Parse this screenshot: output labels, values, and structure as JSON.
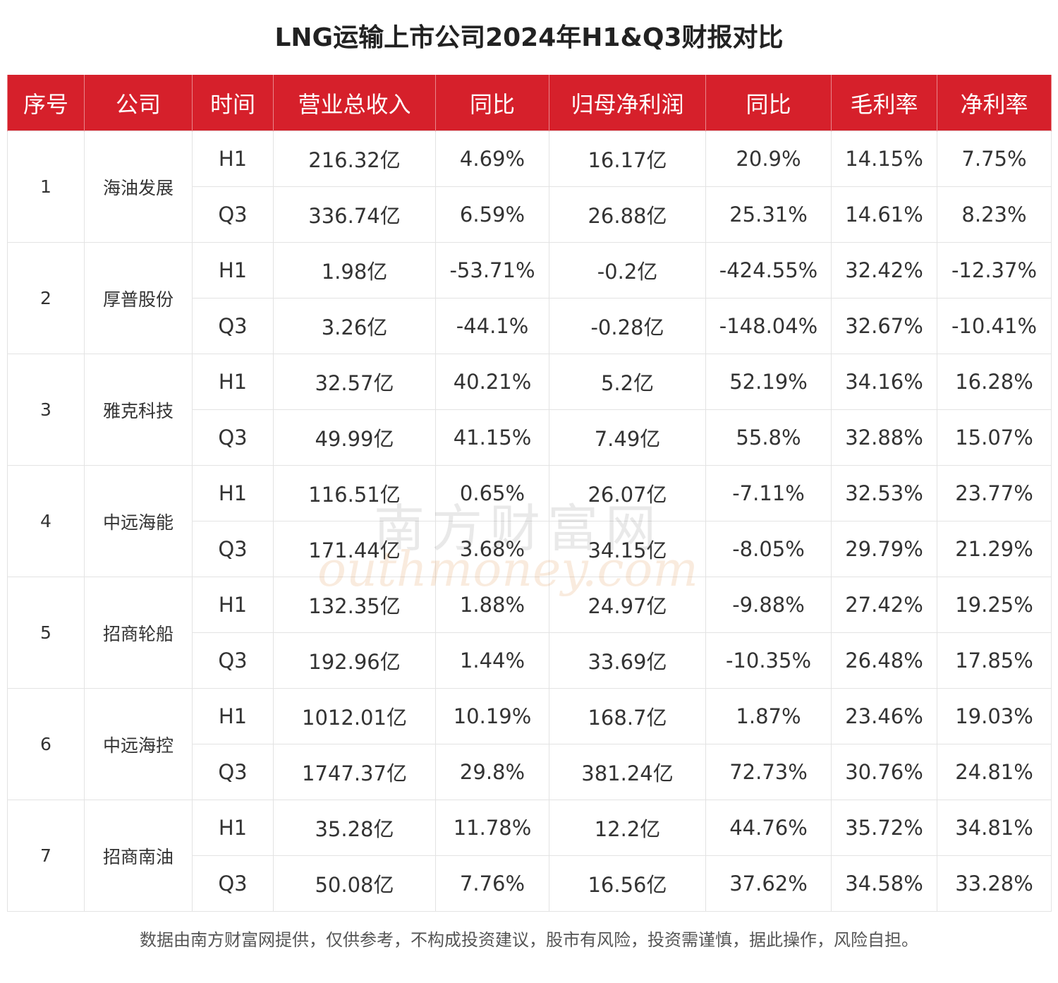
{
  "title": "LNG运输上市公司2024年H1&Q3财报对比",
  "footer": "数据由南方财富网提供，仅供参考，不构成投资建议，股市有风险，投资需谨慎，据此操作，风险自担。",
  "watermark": {
    "cn": "南方财富网",
    "en": "outhmoney.com"
  },
  "chart_data": {
    "type": "table",
    "title": "LNG运输上市公司2024年H1&Q3财报对比",
    "columns": [
      "序号",
      "公司",
      "时间",
      "营业总收入",
      "同比",
      "归母净利润",
      "同比",
      "毛利率",
      "净利率"
    ],
    "companies": [
      {
        "index": "1",
        "name": "海油发展",
        "rows": [
          [
            "H1",
            "216.32亿",
            "4.69%",
            "16.17亿",
            "20.9%",
            "14.15%",
            "7.75%"
          ],
          [
            "Q3",
            "336.74亿",
            "6.59%",
            "26.88亿",
            "25.31%",
            "14.61%",
            "8.23%"
          ]
        ]
      },
      {
        "index": "2",
        "name": "厚普股份",
        "rows": [
          [
            "H1",
            "1.98亿",
            "-53.71%",
            "-0.2亿",
            "-424.55%",
            "32.42%",
            "-12.37%"
          ],
          [
            "Q3",
            "3.26亿",
            "-44.1%",
            "-0.28亿",
            "-148.04%",
            "32.67%",
            "-10.41%"
          ]
        ]
      },
      {
        "index": "3",
        "name": "雅克科技",
        "rows": [
          [
            "H1",
            "32.57亿",
            "40.21%",
            "5.2亿",
            "52.19%",
            "34.16%",
            "16.28%"
          ],
          [
            "Q3",
            "49.99亿",
            "41.15%",
            "7.49亿",
            "55.8%",
            "32.88%",
            "15.07%"
          ]
        ]
      },
      {
        "index": "4",
        "name": "中远海能",
        "rows": [
          [
            "H1",
            "116.51亿",
            "0.65%",
            "26.07亿",
            "-7.11%",
            "32.53%",
            "23.77%"
          ],
          [
            "Q3",
            "171.44亿",
            "3.68%",
            "34.15亿",
            "-8.05%",
            "29.79%",
            "21.29%"
          ]
        ]
      },
      {
        "index": "5",
        "name": "招商轮船",
        "rows": [
          [
            "H1",
            "132.35亿",
            "1.88%",
            "24.97亿",
            "-9.88%",
            "27.42%",
            "19.25%"
          ],
          [
            "Q3",
            "192.96亿",
            "1.44%",
            "33.69亿",
            "-10.35%",
            "26.48%",
            "17.85%"
          ]
        ]
      },
      {
        "index": "6",
        "name": "中远海控",
        "rows": [
          [
            "H1",
            "1012.01亿",
            "10.19%",
            "168.7亿",
            "1.87%",
            "23.46%",
            "19.03%"
          ],
          [
            "Q3",
            "1747.37亿",
            "29.8%",
            "381.24亿",
            "72.73%",
            "30.76%",
            "24.81%"
          ]
        ]
      },
      {
        "index": "7",
        "name": "招商南油",
        "rows": [
          [
            "H1",
            "35.28亿",
            "11.78%",
            "12.2亿",
            "44.76%",
            "35.72%",
            "34.81%"
          ],
          [
            "Q3",
            "50.08亿",
            "7.76%",
            "16.56亿",
            "37.62%",
            "34.58%",
            "33.28%"
          ]
        ]
      }
    ]
  },
  "colors": {
    "header_bg": "#d6202b",
    "header_text": "#ffffff",
    "border": "#e3e3e3"
  }
}
